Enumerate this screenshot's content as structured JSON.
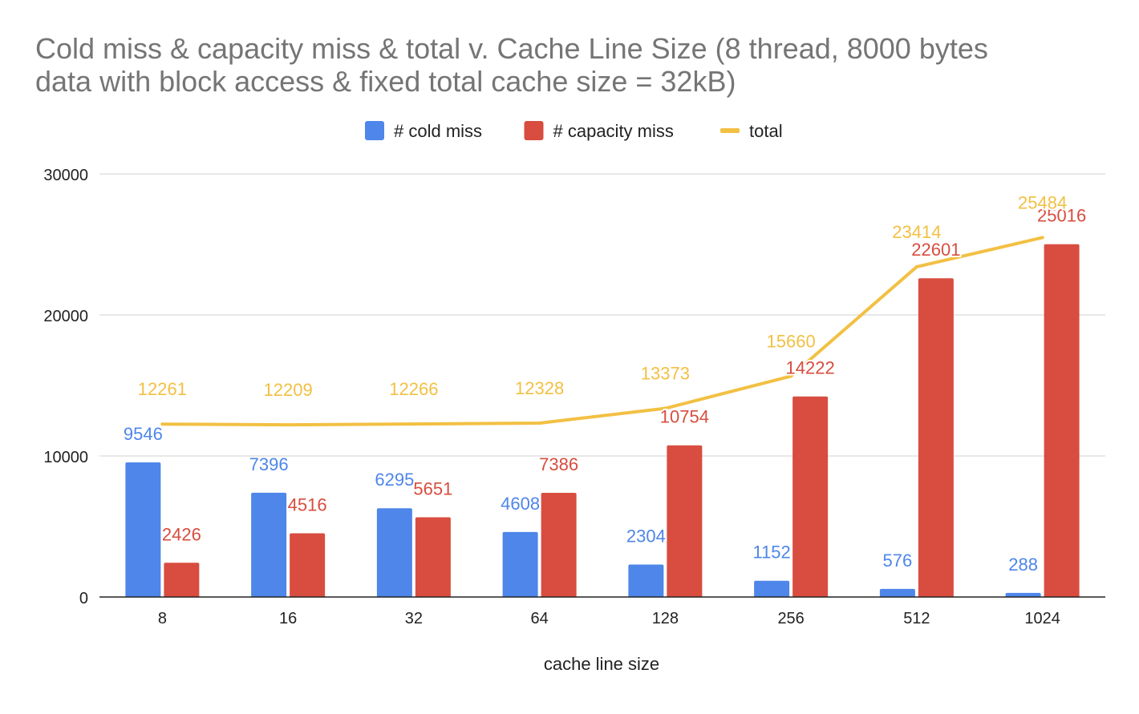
{
  "chart_data": {
    "type": "bar+line",
    "title": "Cold miss & capacity miss & total v. Cache Line Size (8 thread, 8000 bytes data with block access & fixed total cache size = 32kB)",
    "title_lines": [
      "Cold miss & capacity miss & total v. Cache Line Size (8 thread, 8000 bytes",
      "data with block access & fixed total cache size = 32kB)"
    ],
    "xlabel": "cache line size",
    "ylabel": "",
    "categories": [
      "8",
      "16",
      "32",
      "64",
      "128",
      "256",
      "512",
      "1024"
    ],
    "ylim": [
      0,
      30000
    ],
    "yticks": [
      0,
      10000,
      20000,
      30000
    ],
    "ytick_labels": [
      "0",
      "10000",
      "20000",
      "30000"
    ],
    "grid": true,
    "legend_position": "top-center",
    "series": [
      {
        "name": "# cold miss",
        "kind": "bar",
        "color": "#4e86ea",
        "values": [
          9546,
          7396,
          6295,
          4608,
          2304,
          1152,
          576,
          288
        ]
      },
      {
        "name": "# capacity miss",
        "kind": "bar",
        "color": "#d84d3f",
        "values": [
          2426,
          4516,
          5651,
          7386,
          10754,
          14222,
          22601,
          25016
        ]
      },
      {
        "name": "total",
        "kind": "line",
        "color": "#f2c043",
        "values": [
          12261,
          12209,
          12266,
          12328,
          13373,
          15660,
          23414,
          25484
        ]
      }
    ]
  }
}
